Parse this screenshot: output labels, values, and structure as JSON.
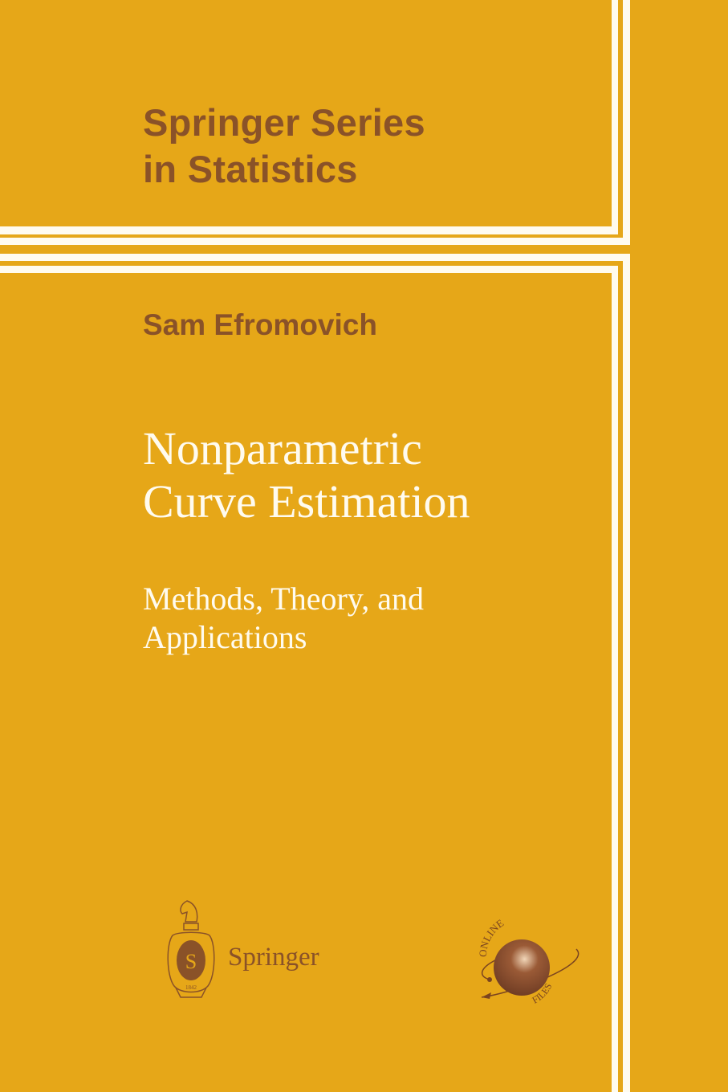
{
  "series": {
    "line1": "Springer Series",
    "line2": "in Statistics"
  },
  "author": "Sam Efromovich",
  "title": {
    "line1": "Nonparametric",
    "line2": "Curve Estimation"
  },
  "subtitle": {
    "line1": "Methods, Theory, and",
    "line2": "Applications"
  },
  "publisher": {
    "name": "Springer",
    "logo_text": "SP 1842"
  },
  "badge": {
    "top": "ONLINE",
    "bottom": "FILES"
  },
  "colors": {
    "background": "#E6A718",
    "brown": "#8A5228",
    "white": "#FFFBEF"
  }
}
